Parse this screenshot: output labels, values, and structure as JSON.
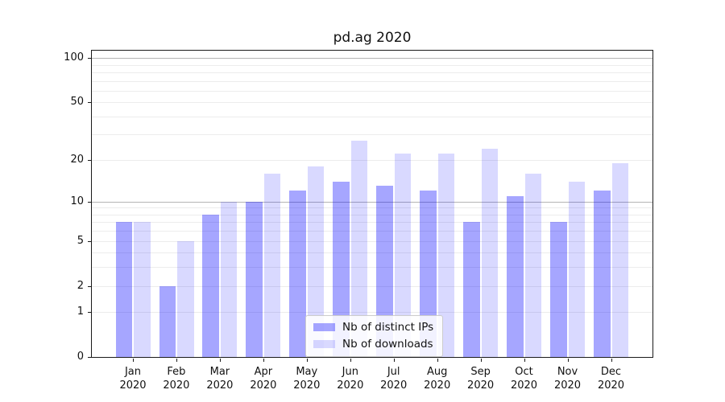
{
  "figure": {
    "title": "pd.ag 2020"
  },
  "chart_data": {
    "type": "bar",
    "title": "pd.ag 2020",
    "categories": [
      "Jan 2020",
      "Feb 2020",
      "Mar 2020",
      "Apr 2020",
      "May 2020",
      "Jun 2020",
      "Jul 2020",
      "Aug 2020",
      "Sep 2020",
      "Oct 2020",
      "Nov 2020",
      "Dec 2020"
    ],
    "series": [
      {
        "name": "Nb of distinct IPs",
        "color": "rgba(0,0,255,0.35)",
        "values": [
          7,
          2,
          8,
          10,
          12,
          14,
          13,
          12,
          7,
          11,
          7,
          12
        ]
      },
      {
        "name": "Nb of downloads",
        "color": "rgba(0,0,255,0.15)",
        "values": [
          7,
          5,
          10,
          16,
          18,
          27,
          22,
          22,
          24,
          16,
          14,
          19
        ]
      }
    ],
    "yscale": "log1p",
    "ylim": [
      0,
      112
    ],
    "yticks": [
      100,
      50,
      20,
      10,
      5,
      2,
      1,
      0
    ],
    "gridlines": {
      "major": [
        100,
        10
      ],
      "minor": [
        90,
        80,
        70,
        60,
        50,
        40,
        30,
        20,
        9,
        8,
        7,
        6,
        5,
        4,
        3,
        2,
        1
      ]
    },
    "legend": {
      "position": "lower center"
    },
    "grid": true,
    "background_color": "#ffffff",
    "axis_color": "#1a1a1a"
  }
}
